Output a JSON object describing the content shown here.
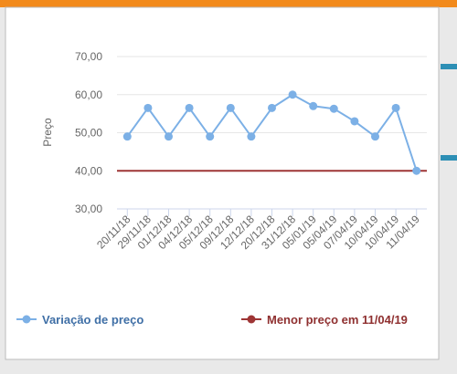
{
  "chart_data": {
    "type": "line",
    "y_label": "Preço",
    "categories": [
      "20/11/18",
      "29/11/18",
      "01/12/18",
      "04/12/18",
      "05/12/18",
      "09/12/18",
      "12/12/18",
      "20/12/18",
      "31/12/18",
      "05/01/19",
      "05/04/19",
      "07/04/19",
      "10/04/19",
      "10/04/19",
      "11/04/19"
    ],
    "series": [
      {
        "name": "Variação de preço",
        "color": "#7cb0e6",
        "values": [
          49,
          56.5,
          49,
          56.5,
          49,
          56.5,
          49,
          56.5,
          60,
          57,
          56.3,
          53,
          49,
          56.5,
          40
        ]
      },
      {
        "name": "Menor preço em 11/04/19",
        "color": "#9e3535",
        "values": [
          40,
          40,
          40,
          40,
          40,
          40,
          40,
          40,
          40,
          40,
          40,
          40,
          40,
          40,
          40
        ]
      }
    ],
    "ylim": [
      30,
      70
    ],
    "yticks": [
      {
        "value": 30,
        "label": "30,00"
      },
      {
        "value": 40,
        "label": "40,00"
      },
      {
        "value": 50,
        "label": "50,00"
      },
      {
        "value": 60,
        "label": "60,00"
      },
      {
        "value": 70,
        "label": "70,00"
      }
    ],
    "grid": true
  }
}
